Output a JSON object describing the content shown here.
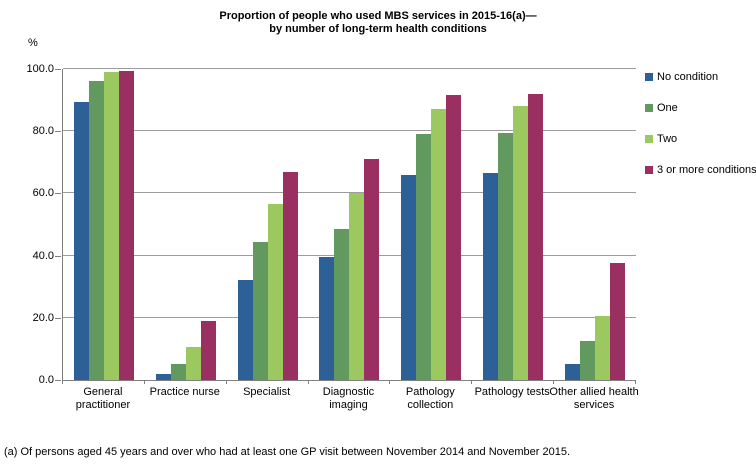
{
  "title": {
    "line1": "Proportion of people who used MBS services in 2015-16(a)—",
    "line2": "by number of long-term health conditions"
  },
  "y_axis_unit": "%",
  "footnote": "(a) Of persons aged 45 years and over who had at least one GP visit between November 2014 and November 2015.",
  "colors": {
    "no_condition": "#2D6096",
    "one": "#61995F",
    "two": "#9CC95F",
    "three_or_more": "#9A3061",
    "gridline": "#9c9c9c",
    "axis": "#808080"
  },
  "chart_data": {
    "type": "bar",
    "title": "Proportion of people who used MBS services in 2015-16(a)— by number of long-term health conditions",
    "ylabel": "%",
    "ylim": [
      0,
      100
    ],
    "y_tick_interval": 20,
    "y_tick_labels": [
      "100.0",
      "80.0",
      "60.0",
      "40.0",
      "20.0",
      "0.0"
    ],
    "grid": true,
    "legend_position": "right",
    "categories": [
      "General practitioner",
      "Practice nurse",
      "Specialist",
      "Diagnostic imaging",
      "Pathology collection",
      "Pathology tests",
      "Other allied health services"
    ],
    "series": [
      {
        "name": "No condition",
        "color": "#2D6096",
        "values": [
          89.5,
          2.0,
          32.0,
          39.5,
          66.0,
          66.5,
          5.0
        ]
      },
      {
        "name": "One",
        "color": "#61995F",
        "values": [
          96.0,
          5.0,
          44.5,
          48.5,
          79.0,
          79.5,
          12.5
        ]
      },
      {
        "name": "Two",
        "color": "#9CC95F",
        "values": [
          99.0,
          10.5,
          56.5,
          60.0,
          87.0,
          88.0,
          20.5
        ]
      },
      {
        "name": "3 or more conditions",
        "color": "#9A3061",
        "values": [
          99.5,
          19.0,
          67.0,
          71.0,
          91.5,
          92.0,
          37.5
        ]
      }
    ]
  }
}
